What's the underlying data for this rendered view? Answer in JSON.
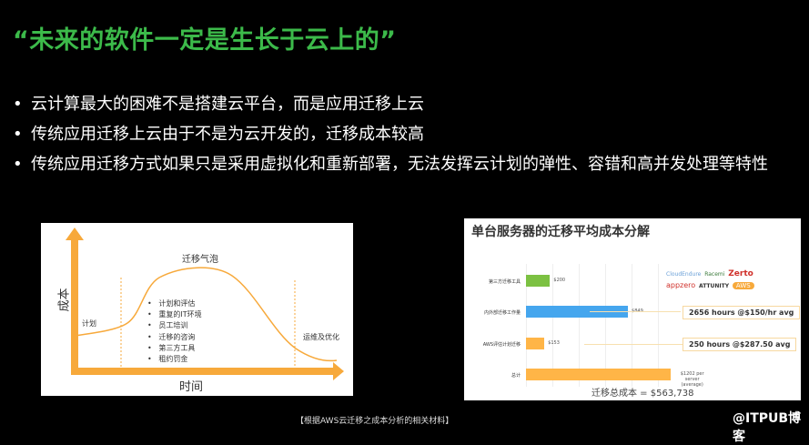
{
  "title": "“未来的软件一定是生长于云上的”",
  "bullets": [
    "云计算最大的困难不是搭建云平台，而是应用迁移上云",
    "传统应用迁移上云由于不是为云开发的，迁移成本较高",
    "传统应用迁移方式如果只是采用虚拟化和重新部署，无法发挥云计划的弹性、容错和高并发处理等特性"
  ],
  "left_figure": {
    "y_label": "成本",
    "x_label": "时间",
    "bubble_label": "迁移气泡",
    "phase_plan": "计划",
    "phase_ops": "运维及优化",
    "items": [
      "计划和评估",
      "重复的IT环境",
      "员工培训",
      "迁移的咨询",
      "第三方工具",
      "租约罚金"
    ],
    "color": "#f7a93b"
  },
  "chart_data": {
    "type": "bar",
    "orientation": "horizontal",
    "title": "单台服务器的迁移平均成本分解",
    "categories": [
      "第三方迁移工具",
      "内外部迁移工作量",
      "AWS评估计划迁移",
      "总计"
    ],
    "values": [
      200,
      849,
      153,
      1202
    ],
    "value_labels": [
      "$200",
      "$849",
      "$153",
      "$1202 per server (average)"
    ],
    "colors": [
      "#7cc142",
      "#45a6ee",
      "#ffb547",
      "#ffb547"
    ],
    "annotations": [
      "2656 hours @$150/hr avg",
      "250 hours @$287.50 avg"
    ],
    "footer": "迁移总成本 = $563,738",
    "logos": [
      "CloudEndure",
      "Racemi",
      "Zerto",
      "appzero",
      "ATTUNITY",
      "AWS"
    ]
  },
  "caption": "【根据AWS云迁移之成本分析的相关材料】",
  "watermark": "@ITPUB博客"
}
